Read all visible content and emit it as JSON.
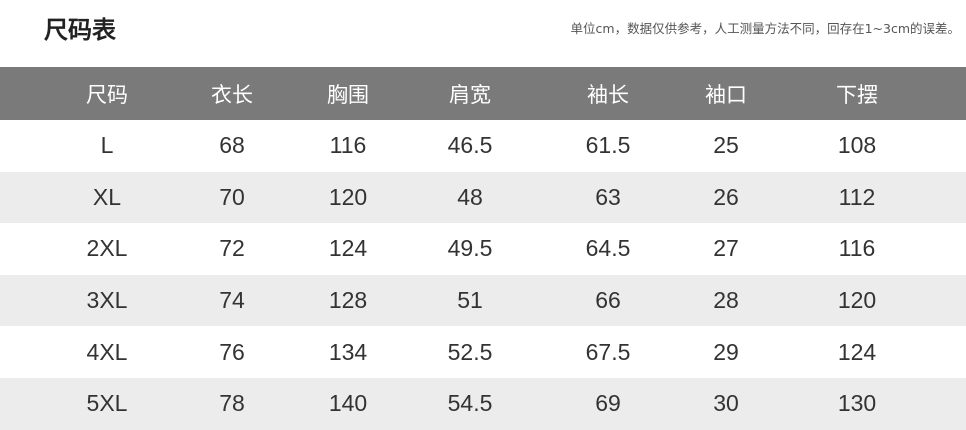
{
  "title": "尺码表",
  "note": "单位cm，数据仅供参考，人工测量方法不同，回存在1~3cm的误差。",
  "table": {
    "headers": [
      "尺码",
      "衣长",
      "胸围",
      "肩宽",
      "袖长",
      "袖口",
      "下摆"
    ],
    "rows": [
      [
        "L",
        "68",
        "116",
        "46.5",
        "61.5",
        "25",
        "108"
      ],
      [
        "XL",
        "70",
        "120",
        "48",
        "63",
        "26",
        "112"
      ],
      [
        "2XL",
        "72",
        "124",
        "49.5",
        "64.5",
        "27",
        "116"
      ],
      [
        "3XL",
        "74",
        "128",
        "51",
        "66",
        "28",
        "120"
      ],
      [
        "4XL",
        "76",
        "134",
        "52.5",
        "67.5",
        "29",
        "124"
      ],
      [
        "5XL",
        "78",
        "140",
        "54.5",
        "69",
        "30",
        "130"
      ]
    ]
  },
  "colors": {
    "header_bg": "#7a7a7a",
    "alt_row_bg": "#ececec"
  }
}
